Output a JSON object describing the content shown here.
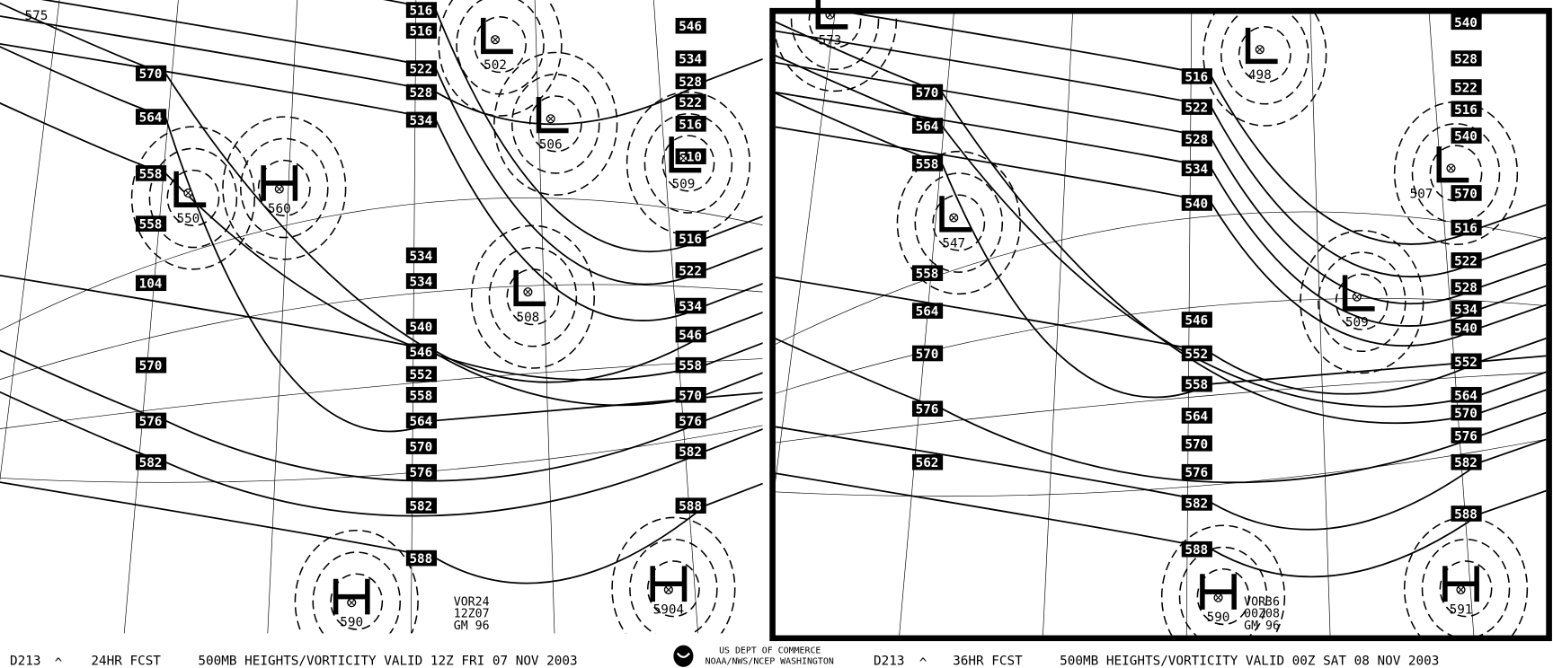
{
  "panels": [
    {
      "id": "left",
      "chart_id": "D213",
      "forecast": "24HR FCST",
      "title": "500MB HEIGHTS/VORTICITY VALID 12Z FRI 07 NOV 2003",
      "stamp": [
        "VOR24",
        "12Z07",
        "GM 96"
      ],
      "height_labels": [
        "570",
        "564",
        "558",
        "558",
        "104",
        "570",
        "576",
        "582",
        "516",
        "516",
        "522",
        "528",
        "534",
        "534",
        "534",
        "540",
        "546",
        "552",
        "558",
        "564",
        "570",
        "576",
        "582",
        "588",
        "546",
        "534",
        "528",
        "522",
        "516",
        "510",
        "516",
        "522",
        "534",
        "546",
        "558",
        "570",
        "576",
        "582",
        "588"
      ],
      "centers": [
        {
          "type": "L",
          "value": "550"
        },
        {
          "type": "L",
          "value": "502"
        },
        {
          "type": "L",
          "value": "506"
        },
        {
          "type": "L",
          "value": "508"
        },
        {
          "type": "L",
          "value": "509"
        },
        {
          "type": "H",
          "value": "560"
        },
        {
          "type": "H",
          "value": "590"
        },
        {
          "type": "H",
          "value": "5904"
        }
      ],
      "corner_label": "575"
    },
    {
      "id": "right",
      "chart_id": "D213",
      "forecast": "36HR FCST",
      "title": "500MB HEIGHTS/VORTICITY VALID 00Z SAT 08 NOV 2003",
      "stamp": [
        "VOR36",
        "00Z08",
        "GM 96"
      ],
      "height_labels": [
        "570",
        "564",
        "558",
        "558",
        "564",
        "570",
        "576",
        "562",
        "516",
        "522",
        "528",
        "534",
        "540",
        "546",
        "552",
        "558",
        "564",
        "570",
        "576",
        "582",
        "588",
        "540",
        "528",
        "522",
        "516",
        "540",
        "570",
        "516",
        "522",
        "528",
        "534",
        "540",
        "552",
        "564",
        "570",
        "576",
        "582",
        "588"
      ],
      "centers": [
        {
          "type": "L",
          "value": "573"
        },
        {
          "type": "L",
          "value": "498"
        },
        {
          "type": "L",
          "value": "547"
        },
        {
          "type": "L",
          "value": "509"
        },
        {
          "type": "L",
          "value": "507"
        },
        {
          "type": "H",
          "value": "590"
        },
        {
          "type": "H",
          "value": "591"
        }
      ],
      "corner_label": ""
    }
  ],
  "credit": {
    "line1": "US DEPT OF COMMERCE",
    "line2": "NOAA/NWS/NCEP WASHINGTON"
  },
  "colors": {
    "ink": "#000000",
    "background": "#ffffff"
  }
}
